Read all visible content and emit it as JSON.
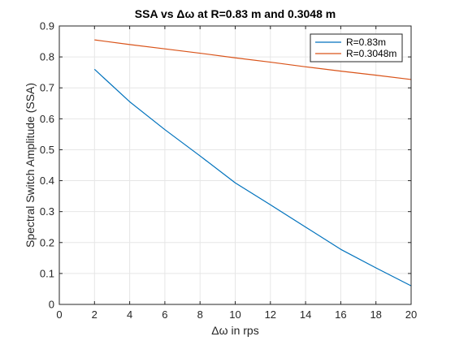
{
  "chart_data": {
    "type": "line",
    "title": "SSA vs Δω at R=0.83 m and 0.3048 m",
    "xlabel": "Δω in rps",
    "ylabel": "Spectral Switch Amplitude (SSA)",
    "xlim": [
      0,
      20
    ],
    "ylim": [
      0,
      0.9
    ],
    "xticks": [
      0,
      2,
      4,
      6,
      8,
      10,
      12,
      14,
      16,
      18,
      20
    ],
    "yticks": [
      0,
      0.1,
      0.2,
      0.3,
      0.4,
      0.5,
      0.6,
      0.7,
      0.8,
      0.9
    ],
    "xtick_labels": [
      "0",
      "2",
      "4",
      "6",
      "8",
      "10",
      "12",
      "14",
      "16",
      "18",
      "20"
    ],
    "ytick_labels": [
      "0",
      "0.1",
      "0.2",
      "0.3",
      "0.4",
      "0.5",
      "0.6",
      "0.7",
      "0.8",
      "0.9"
    ],
    "grid": true,
    "legend_position": "top-right",
    "series": [
      {
        "name": "R=0.83m",
        "color": "#0072BD",
        "x": [
          2,
          4,
          6,
          8,
          10,
          12,
          14,
          16,
          18,
          20
        ],
        "y": [
          0.76,
          0.655,
          0.565,
          0.48,
          0.393,
          0.322,
          0.25,
          0.178,
          0.118,
          0.06
        ]
      },
      {
        "name": "R=0.3048m",
        "color": "#D95319",
        "x": [
          2,
          4,
          6,
          8,
          10,
          12,
          14,
          16,
          18,
          20
        ],
        "y": [
          0.855,
          0.84,
          0.826,
          0.812,
          0.797,
          0.783,
          0.768,
          0.754,
          0.741,
          0.727
        ]
      }
    ]
  }
}
